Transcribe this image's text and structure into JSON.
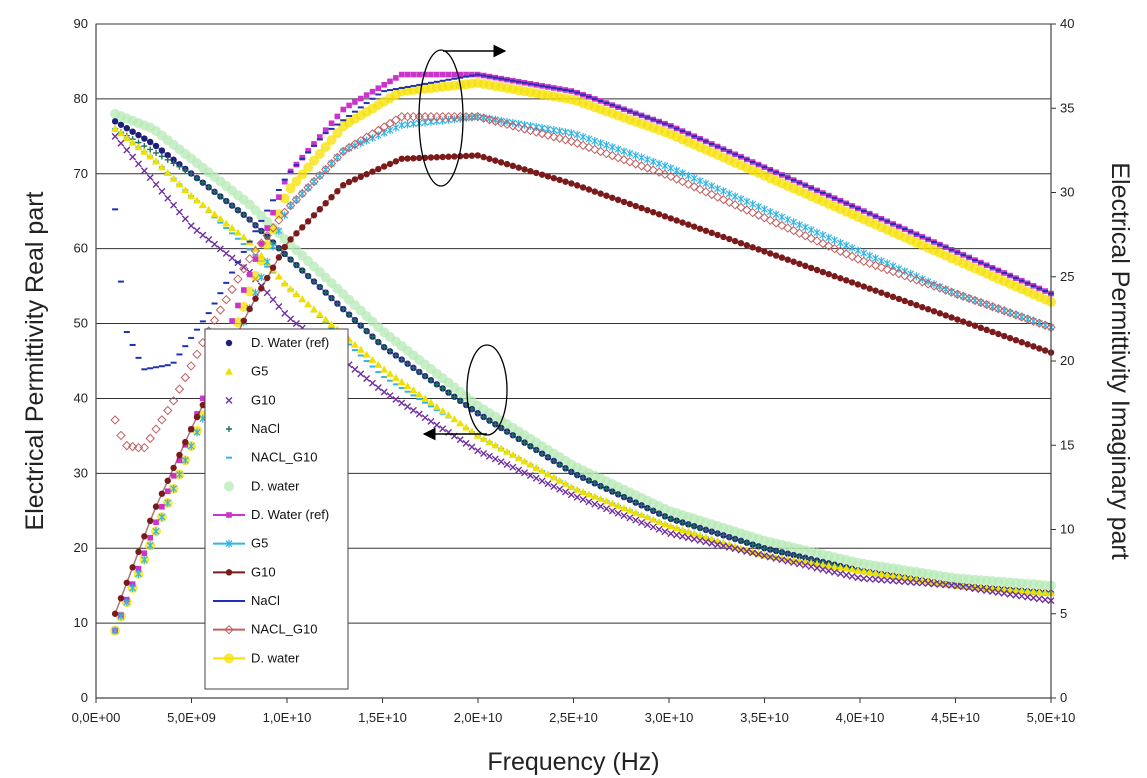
{
  "chart_data": {
    "type": "scatter",
    "xlabel": "Frequency (Hz)",
    "ylabel_left": "Electrical Permittivity Real part",
    "ylabel_right": "Electrical Permittivity Imaginary part",
    "xlim": [
      0,
      50000000000
    ],
    "ylim_left": [
      0,
      90
    ],
    "ylim_right": [
      0,
      40
    ],
    "x_tick_labels": [
      "0,0E+00",
      "5,0E+09",
      "1,0E+10",
      "1,5E+10",
      "2,0E+10",
      "2,5E+10",
      "3,0E+10",
      "3,5E+10",
      "4,0E+10",
      "4,5E+10",
      "5,0E+10"
    ],
    "y_left_tick_labels": [
      "0",
      "10",
      "20",
      "30",
      "40",
      "50",
      "60",
      "70",
      "80",
      "90"
    ],
    "y_right_tick_labels": [
      "0",
      "5",
      "10",
      "15",
      "20",
      "25",
      "30",
      "35",
      "40"
    ],
    "grid": "horizontal",
    "legend_position": "center-left",
    "series": [
      {
        "name": "D. Water (ref)",
        "axis": "left",
        "color": "#1f1f7a",
        "marker": "dot",
        "x": [
          1000000000.0,
          3000000000.0,
          5000000000.0,
          8000000000.0,
          10000000000.0,
          15000000000.0,
          20000000000.0,
          25000000000.0,
          30000000000.0,
          35000000000.0,
          40000000000.0,
          45000000000.0,
          50000000000.0
        ],
        "y": [
          77,
          74,
          70,
          64,
          59,
          47,
          38,
          30,
          24,
          20,
          17,
          15,
          14
        ]
      },
      {
        "name": "G5",
        "axis": "left",
        "color": "#f0e000",
        "marker": "triangle",
        "x": [
          1000000000.0,
          3000000000.0,
          5000000000.0,
          8000000000.0,
          10000000000.0,
          15000000000.0,
          20000000000.0,
          25000000000.0,
          30000000000.0,
          35000000000.0,
          40000000000.0,
          45000000000.0,
          50000000000.0
        ],
        "y": [
          76,
          72,
          67,
          61,
          55,
          44,
          35,
          28,
          23,
          19,
          17,
          15,
          14
        ]
      },
      {
        "name": "G10",
        "axis": "left",
        "color": "#7030a0",
        "marker": "x",
        "x": [
          1000000000.0,
          3000000000.0,
          5000000000.0,
          8000000000.0,
          10000000000.0,
          15000000000.0,
          20000000000.0,
          25000000000.0,
          30000000000.0,
          35000000000.0,
          40000000000.0,
          45000000000.0,
          50000000000.0
        ],
        "y": [
          75,
          69,
          63,
          57,
          51,
          41,
          33,
          27,
          22,
          19,
          16,
          15,
          13
        ]
      },
      {
        "name": "NaCl",
        "axis": "left",
        "color": "#1f6f5f",
        "marker": "plus",
        "x": [
          1000000000.0,
          3000000000.0,
          5000000000.0,
          8000000000.0,
          10000000000.0,
          15000000000.0,
          20000000000.0,
          25000000000.0,
          30000000000.0,
          35000000000.0,
          40000000000.0,
          45000000000.0,
          50000000000.0
        ],
        "y": [
          76,
          73,
          70,
          64,
          59,
          47,
          38,
          30,
          24,
          20,
          17,
          15,
          14
        ]
      },
      {
        "name": "NACL_G10",
        "axis": "left",
        "color": "#33b5e5",
        "marker": "dash",
        "x": [
          1000000000.0,
          3000000000.0,
          5000000000.0,
          8000000000.0,
          10000000000.0,
          15000000000.0,
          20000000000.0,
          25000000000.0,
          30000000000.0,
          35000000000.0,
          40000000000.0,
          45000000000.0,
          50000000000.0
        ],
        "y": [
          76,
          72,
          67,
          60,
          55,
          43,
          35,
          28,
          23,
          19,
          17,
          15,
          14
        ]
      },
      {
        "name": "D. water",
        "axis": "left",
        "color": "#b5eab5",
        "marker": "blob",
        "x": [
          1000000000.0,
          3000000000.0,
          5000000000.0,
          8000000000.0,
          10000000000.0,
          15000000000.0,
          20000000000.0,
          25000000000.0,
          30000000000.0,
          35000000000.0,
          40000000000.0,
          45000000000.0,
          50000000000.0
        ],
        "y": [
          78,
          76,
          72,
          66,
          61,
          49,
          39,
          31,
          25,
          21,
          18,
          16,
          15
        ]
      },
      {
        "name": "D. Water (ref)",
        "axis": "right",
        "color": "#cc33cc",
        "marker": "square",
        "x": [
          1000000000.0,
          3000000000.0,
          5000000000.0,
          8000000000.0,
          10000000000.0,
          13000000000.0,
          16000000000.0,
          20000000000.0,
          25000000000.0,
          30000000000.0,
          35000000000.0,
          40000000000.0,
          45000000000.0,
          50000000000.0
        ],
        "y": [
          4,
          10,
          16,
          25,
          31,
          35,
          37,
          37,
          36,
          34,
          31.5,
          29,
          26.5,
          24
        ]
      },
      {
        "name": "G5",
        "axis": "right",
        "color": "#33b5e5",
        "marker": "star",
        "x": [
          1000000000.0,
          3000000000.0,
          5000000000.0,
          8000000000.0,
          10000000000.0,
          13000000000.0,
          16000000000.0,
          20000000000.0,
          25000000000.0,
          30000000000.0,
          35000000000.0,
          40000000000.0,
          45000000000.0,
          50000000000.0
        ],
        "y": [
          4,
          9.5,
          15,
          23,
          29,
          32.5,
          34,
          34.5,
          33.5,
          31.5,
          29,
          26.5,
          24,
          22
        ]
      },
      {
        "name": "G10",
        "axis": "right",
        "color": "#7b1a1a",
        "marker": "dot",
        "x": [
          1000000000.0,
          3000000000.0,
          5000000000.0,
          8000000000.0,
          10000000000.0,
          13000000000.0,
          16000000000.0,
          20000000000.0,
          25000000000.0,
          30000000000.0,
          35000000000.0,
          40000000000.0,
          45000000000.0,
          50000000000.0
        ],
        "y": [
          5,
          11,
          16,
          23,
          27,
          30.5,
          32,
          32.2,
          30.5,
          28.5,
          26.5,
          24.5,
          22.5,
          20.5
        ]
      },
      {
        "name": "NaCl",
        "axis": "right",
        "color": "#2030b0",
        "marker": "dash",
        "x": [
          1000000000.0,
          1500000000.0,
          2500000000.0,
          4000000000.0,
          6000000000.0,
          8000000000.0,
          10000000000.0,
          12000000000.0,
          15000000000.0,
          20000000000.0,
          25000000000.0,
          30000000000.0,
          35000000000.0,
          40000000000.0,
          45000000000.0,
          50000000000.0
        ],
        "y": [
          29,
          22,
          19.5,
          19.8,
          23,
          27,
          31,
          33.5,
          36,
          37,
          36,
          34,
          31.5,
          29,
          26.5,
          24
        ]
      },
      {
        "name": "NACL_G10",
        "axis": "right",
        "color": "#c06060",
        "marker": "diamond",
        "x": [
          1000000000.0,
          1500000000.0,
          2500000000.0,
          4000000000.0,
          6000000000.0,
          8000000000.0,
          10000000000.0,
          13000000000.0,
          16000000000.0,
          20000000000.0,
          25000000000.0,
          30000000000.0,
          35000000000.0,
          40000000000.0,
          45000000000.0,
          50000000000.0
        ],
        "y": [
          16.5,
          15,
          14.8,
          17.5,
          22,
          26,
          29,
          32.5,
          34.5,
          34.5,
          33,
          31,
          28.5,
          26,
          24,
          22
        ]
      },
      {
        "name": "D. water",
        "axis": "right",
        "color": "#f5e000",
        "marker": "blob",
        "x": [
          1000000000.0,
          3000000000.0,
          5000000000.0,
          8000000000.0,
          10000000000.0,
          13000000000.0,
          16000000000.0,
          20000000000.0,
          25000000000.0,
          30000000000.0,
          35000000000.0,
          40000000000.0,
          45000000000.0,
          50000000000.0
        ],
        "y": [
          4,
          9.5,
          15,
          24,
          30,
          34,
          36,
          36.5,
          35.5,
          33.5,
          31,
          28.5,
          26,
          23.5
        ]
      }
    ],
    "annotations": [
      {
        "type": "ellipse-arrow",
        "direction": "right",
        "meaning": "imaginary-part axis"
      },
      {
        "type": "ellipse-arrow",
        "direction": "left",
        "meaning": "real-part axis"
      }
    ]
  }
}
